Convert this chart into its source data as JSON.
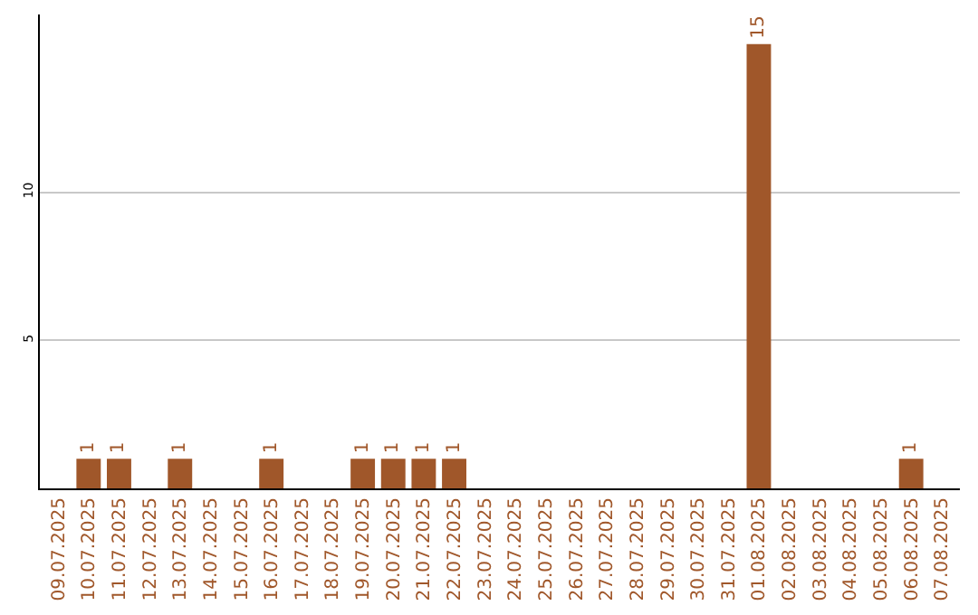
{
  "chart_data": {
    "type": "bar",
    "categories": [
      "09.07.2025",
      "10.07.2025",
      "11.07.2025",
      "12.07.2025",
      "13.07.2025",
      "14.07.2025",
      "15.07.2025",
      "16.07.2025",
      "17.07.2025",
      "18.07.2025",
      "19.07.2025",
      "20.07.2025",
      "21.07.2025",
      "22.07.2025",
      "23.07.2025",
      "24.07.2025",
      "25.07.2025",
      "26.07.2025",
      "27.07.2025",
      "28.07.2025",
      "29.07.2025",
      "30.07.2025",
      "31.07.2025",
      "01.08.2025",
      "02.08.2025",
      "03.08.2025",
      "04.08.2025",
      "05.08.2025",
      "06.08.2025",
      "07.08.2025"
    ],
    "values": [
      0,
      1,
      1,
      0,
      1,
      0,
      0,
      1,
      0,
      0,
      1,
      1,
      1,
      1,
      0,
      0,
      0,
      0,
      0,
      0,
      0,
      0,
      0,
      15,
      0,
      0,
      0,
      0,
      1,
      0
    ],
    "value_labels": [
      null,
      "1",
      "1",
      null,
      "1",
      null,
      null,
      "1",
      null,
      null,
      "1",
      "1",
      "1",
      "1",
      null,
      null,
      null,
      null,
      null,
      null,
      null,
      null,
      null,
      "15",
      null,
      null,
      null,
      null,
      "1",
      null
    ],
    "color": "#a0572a",
    "ylim": [
      0,
      16
    ],
    "yticks": [
      5,
      10
    ],
    "grid": "y",
    "legend": false
  }
}
